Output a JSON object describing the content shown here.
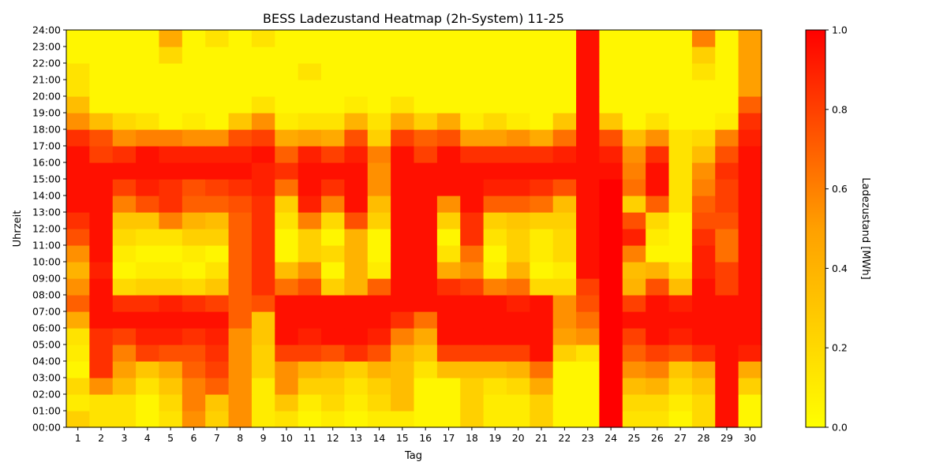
{
  "chart_data": {
    "type": "heatmap",
    "title": "BESS Ladezustand Heatmap (2h-System) 11-25",
    "xlabel": "Tag",
    "ylabel": "Uhrzeit",
    "colorbar_label": "Ladezustand [MWh]",
    "colorbar_range": [
      0.0,
      1.0
    ],
    "colorbar_ticks": [
      "0.0",
      "0.2",
      "0.4",
      "0.6",
      "0.8",
      "1.0"
    ],
    "colormap": [
      "#ffff00",
      "#ffa000",
      "#ff0000"
    ],
    "x_categories": [
      "1",
      "2",
      "3",
      "4",
      "5",
      "6",
      "7",
      "8",
      "9",
      "10",
      "11",
      "12",
      "13",
      "14",
      "15",
      "16",
      "17",
      "18",
      "19",
      "20",
      "21",
      "22",
      "23",
      "24",
      "25",
      "26",
      "27",
      "28",
      "29",
      "30"
    ],
    "y_tick_labels": [
      "00:00",
      "01:00",
      "02:00",
      "03:00",
      "04:00",
      "05:00",
      "06:00",
      "07:00",
      "08:00",
      "09:00",
      "10:00",
      "11:00",
      "12:00",
      "13:00",
      "14:00",
      "15:00",
      "16:00",
      "17:00",
      "18:00",
      "19:00",
      "20:00",
      "21:00",
      "22:00",
      "23:00",
      "24:00"
    ],
    "time_resolution": "hourly",
    "values": [
      [
        0.25,
        0.15,
        0.15,
        0.05,
        0.15,
        0.55,
        0.25,
        0.55,
        0.1,
        0.15,
        0.05,
        0.1,
        0.05,
        0.1,
        0.1,
        0.05,
        0.05,
        0.25,
        0.1,
        0.1,
        0.25,
        0.05,
        0.05,
        1.0,
        0.15,
        0.15,
        0.05,
        0.2,
        0.95,
        0.05
      ],
      [
        0.1,
        0.15,
        0.15,
        0.05,
        0.2,
        0.6,
        0.3,
        0.55,
        0.1,
        0.3,
        0.1,
        0.2,
        0.1,
        0.2,
        0.35,
        0.05,
        0.05,
        0.25,
        0.1,
        0.1,
        0.25,
        0.05,
        0.05,
        1.0,
        0.2,
        0.2,
        0.1,
        0.2,
        0.95,
        0.05
      ],
      [
        0.2,
        0.55,
        0.35,
        0.15,
        0.3,
        0.6,
        0.7,
        0.55,
        0.1,
        0.55,
        0.25,
        0.25,
        0.15,
        0.25,
        0.35,
        0.05,
        0.05,
        0.25,
        0.15,
        0.2,
        0.45,
        0.05,
        0.05,
        1.0,
        0.35,
        0.4,
        0.2,
        0.3,
        0.95,
        0.25
      ],
      [
        0.05,
        0.85,
        0.5,
        0.3,
        0.45,
        0.7,
        0.8,
        0.55,
        0.25,
        0.55,
        0.4,
        0.35,
        0.25,
        0.4,
        0.35,
        0.15,
        0.35,
        0.35,
        0.35,
        0.4,
        0.65,
        0.05,
        0.05,
        1.0,
        0.55,
        0.6,
        0.3,
        0.45,
        0.95,
        0.45
      ],
      [
        0.1,
        0.85,
        0.6,
        0.8,
        0.75,
        0.75,
        0.85,
        0.55,
        0.25,
        0.8,
        0.8,
        0.75,
        0.85,
        0.75,
        0.4,
        0.3,
        0.8,
        0.8,
        0.8,
        0.8,
        0.95,
        0.25,
        0.15,
        1.0,
        0.7,
        0.8,
        0.75,
        0.85,
        0.95,
        0.9
      ],
      [
        0.15,
        0.85,
        0.8,
        0.9,
        0.9,
        0.85,
        0.9,
        0.55,
        0.3,
        0.95,
        0.9,
        0.95,
        0.95,
        0.9,
        0.6,
        0.45,
        0.95,
        0.95,
        0.95,
        0.95,
        0.95,
        0.5,
        0.55,
        1.0,
        0.8,
        0.95,
        0.9,
        0.95,
        0.95,
        0.95
      ],
      [
        0.45,
        0.95,
        0.95,
        0.95,
        0.95,
        0.95,
        0.95,
        0.7,
        0.3,
        0.95,
        0.95,
        0.95,
        0.95,
        0.95,
        0.85,
        0.65,
        0.95,
        0.95,
        0.95,
        0.95,
        0.95,
        0.55,
        0.65,
        1.0,
        0.95,
        0.95,
        0.95,
        0.95,
        0.95,
        0.95
      ],
      [
        0.7,
        0.95,
        0.85,
        0.85,
        0.9,
        0.85,
        0.8,
        0.7,
        0.75,
        0.95,
        0.95,
        0.95,
        0.95,
        0.95,
        0.95,
        0.95,
        0.95,
        0.95,
        0.95,
        0.9,
        0.95,
        0.55,
        0.75,
        1.0,
        0.8,
        0.95,
        0.9,
        0.95,
        0.95,
        0.95
      ],
      [
        0.55,
        0.95,
        0.2,
        0.25,
        0.25,
        0.2,
        0.3,
        0.7,
        0.85,
        0.65,
        0.75,
        0.25,
        0.4,
        0.7,
        0.95,
        0.95,
        0.85,
        0.8,
        0.6,
        0.65,
        0.2,
        0.2,
        0.8,
        1.0,
        0.4,
        0.75,
        0.35,
        0.95,
        0.8,
        0.95
      ],
      [
        0.4,
        0.9,
        0.05,
        0.1,
        0.1,
        0.05,
        0.15,
        0.7,
        0.85,
        0.35,
        0.55,
        0.05,
        0.4,
        0.1,
        0.95,
        0.95,
        0.45,
        0.55,
        0.1,
        0.4,
        0.05,
        0.1,
        0.95,
        1.0,
        0.35,
        0.4,
        0.15,
        0.9,
        0.8,
        0.95
      ],
      [
        0.55,
        0.95,
        0.1,
        0.05,
        0.05,
        0.1,
        0.05,
        0.7,
        0.85,
        0.05,
        0.25,
        0.2,
        0.4,
        0.05,
        0.95,
        0.95,
        0.15,
        0.65,
        0.05,
        0.25,
        0.1,
        0.2,
        0.95,
        1.0,
        0.6,
        0.05,
        0.05,
        0.9,
        0.65,
        0.95
      ],
      [
        0.75,
        0.95,
        0.2,
        0.15,
        0.15,
        0.25,
        0.25,
        0.7,
        0.85,
        0.05,
        0.25,
        0.05,
        0.4,
        0.05,
        0.95,
        0.95,
        0.05,
        0.85,
        0.15,
        0.25,
        0.1,
        0.2,
        0.95,
        1.0,
        0.9,
        0.1,
        0.05,
        0.85,
        0.65,
        0.95
      ],
      [
        0.85,
        0.95,
        0.3,
        0.3,
        0.6,
        0.4,
        0.35,
        0.7,
        0.85,
        0.15,
        0.6,
        0.2,
        0.75,
        0.25,
        0.95,
        0.95,
        0.25,
        0.85,
        0.25,
        0.3,
        0.25,
        0.25,
        0.95,
        1.0,
        0.75,
        0.2,
        0.05,
        0.75,
        0.75,
        0.95
      ],
      [
        0.95,
        0.95,
        0.6,
        0.75,
        0.85,
        0.7,
        0.7,
        0.75,
        0.85,
        0.25,
        0.9,
        0.6,
        0.95,
        0.35,
        0.95,
        0.95,
        0.55,
        0.95,
        0.7,
        0.7,
        0.65,
        0.35,
        0.95,
        1.0,
        0.25,
        0.7,
        0.15,
        0.7,
        0.8,
        0.95
      ],
      [
        0.95,
        0.95,
        0.8,
        0.9,
        0.85,
        0.75,
        0.8,
        0.85,
        0.9,
        0.65,
        0.95,
        0.85,
        0.95,
        0.55,
        0.95,
        0.95,
        0.95,
        0.95,
        0.9,
        0.9,
        0.85,
        0.75,
        0.95,
        1.0,
        0.65,
        0.95,
        0.15,
        0.6,
        0.8,
        0.95
      ],
      [
        0.95,
        0.95,
        0.95,
        0.95,
        0.95,
        0.95,
        0.95,
        0.95,
        0.9,
        0.85,
        0.95,
        0.95,
        0.95,
        0.55,
        0.95,
        0.95,
        0.95,
        0.95,
        0.95,
        0.95,
        0.95,
        0.95,
        0.95,
        0.95,
        0.6,
        0.95,
        0.15,
        0.55,
        0.85,
        0.95
      ],
      [
        0.95,
        0.8,
        0.85,
        0.95,
        0.9,
        0.9,
        0.9,
        0.9,
        0.95,
        0.7,
        0.9,
        0.8,
        0.9,
        0.6,
        0.95,
        0.8,
        0.95,
        0.85,
        0.85,
        0.85,
        0.85,
        0.9,
        0.95,
        0.9,
        0.55,
        0.85,
        0.15,
        0.35,
        0.75,
        0.95
      ],
      [
        0.85,
        0.75,
        0.55,
        0.6,
        0.6,
        0.55,
        0.55,
        0.75,
        0.8,
        0.45,
        0.5,
        0.45,
        0.75,
        0.25,
        0.8,
        0.7,
        0.75,
        0.5,
        0.5,
        0.55,
        0.45,
        0.65,
        0.95,
        0.75,
        0.35,
        0.55,
        0.15,
        0.2,
        0.6,
        0.9
      ],
      [
        0.55,
        0.35,
        0.2,
        0.15,
        0.05,
        0.1,
        0.05,
        0.3,
        0.55,
        0.1,
        0.15,
        0.15,
        0.4,
        0.15,
        0.45,
        0.25,
        0.45,
        0.1,
        0.2,
        0.1,
        0.05,
        0.3,
        0.95,
        0.3,
        0.05,
        0.15,
        0.05,
        0.05,
        0.1,
        0.85
      ],
      [
        0.35,
        0.05,
        0.05,
        0.05,
        0.05,
        0.05,
        0.05,
        0.05,
        0.15,
        0.05,
        0.05,
        0.05,
        0.1,
        0.05,
        0.15,
        0.05,
        0.05,
        0.05,
        0.05,
        0.05,
        0.05,
        0.05,
        0.95,
        0.05,
        0.05,
        0.05,
        0.05,
        0.05,
        0.05,
        0.7
      ],
      [
        0.15,
        0.05,
        0.05,
        0.05,
        0.05,
        0.05,
        0.05,
        0.05,
        0.05,
        0.05,
        0.05,
        0.05,
        0.05,
        0.05,
        0.05,
        0.05,
        0.05,
        0.05,
        0.05,
        0.05,
        0.05,
        0.05,
        0.95,
        0.05,
        0.05,
        0.05,
        0.05,
        0.05,
        0.05,
        0.5
      ],
      [
        0.15,
        0.05,
        0.05,
        0.05,
        0.05,
        0.05,
        0.05,
        0.05,
        0.05,
        0.05,
        0.15,
        0.05,
        0.05,
        0.05,
        0.05,
        0.05,
        0.05,
        0.05,
        0.05,
        0.05,
        0.05,
        0.05,
        0.95,
        0.05,
        0.05,
        0.05,
        0.05,
        0.15,
        0.05,
        0.5
      ],
      [
        0.05,
        0.05,
        0.05,
        0.05,
        0.2,
        0.05,
        0.05,
        0.05,
        0.05,
        0.05,
        0.05,
        0.05,
        0.05,
        0.05,
        0.05,
        0.05,
        0.05,
        0.05,
        0.05,
        0.05,
        0.05,
        0.05,
        0.95,
        0.05,
        0.05,
        0.05,
        0.05,
        0.25,
        0.05,
        0.5
      ],
      [
        0.05,
        0.05,
        0.05,
        0.05,
        0.45,
        0.05,
        0.15,
        0.05,
        0.15,
        0.05,
        0.05,
        0.05,
        0.05,
        0.05,
        0.05,
        0.05,
        0.05,
        0.05,
        0.05,
        0.05,
        0.05,
        0.05,
        0.95,
        0.05,
        0.05,
        0.05,
        0.05,
        0.6,
        0.05,
        0.5
      ]
    ]
  }
}
